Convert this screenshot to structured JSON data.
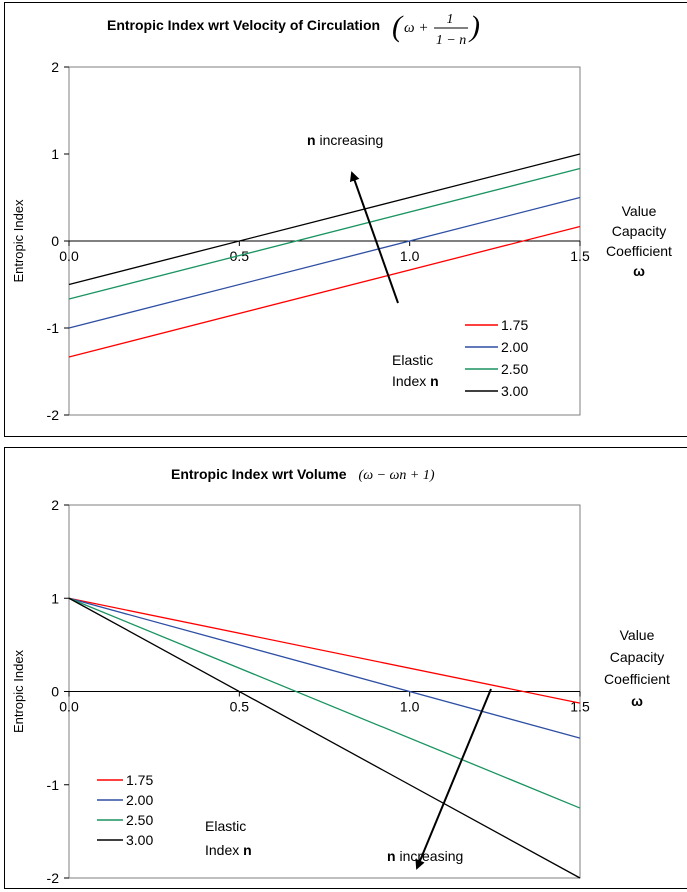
{
  "chart_data": [
    {
      "type": "line",
      "title": "Entropic Index wrt Velocity of Circulation",
      "formula": {
        "prefix": "ω +",
        "numerator": "1",
        "denominator": "1 − n"
      },
      "ylabel": "Entropic Index",
      "xlabel_lines": [
        "Value",
        "Capacity",
        "Coefficient",
        "ω"
      ],
      "xlim": [
        0,
        1.5
      ],
      "ylim": [
        -2,
        2
      ],
      "xticks": [
        "0.0",
        "0.5",
        "1.0",
        "1.5"
      ],
      "yticks": [
        "-2",
        "-1",
        "0",
        "1",
        "2"
      ],
      "legend_title_lines": [
        "Elastic",
        "Index n"
      ],
      "legend_position": "bottom-right",
      "annotation": "n increasing",
      "series": [
        {
          "name": "1.75",
          "color": "#ff0000",
          "x": [
            0,
            1.5
          ],
          "y": [
            -1.333,
            0.167
          ]
        },
        {
          "name": "2.00",
          "color": "#2e4fa3",
          "x": [
            0,
            1.5
          ],
          "y": [
            -1.0,
            0.5
          ]
        },
        {
          "name": "2.50",
          "color": "#1a9461",
          "x": [
            0,
            1.5
          ],
          "y": [
            -0.667,
            0.833
          ]
        },
        {
          "name": "3.00",
          "color": "#000000",
          "x": [
            0,
            1.5
          ],
          "y": [
            -0.5,
            1.0
          ]
        }
      ]
    },
    {
      "type": "line",
      "title": "Entropic Index wrt Volume",
      "formula": {
        "text": "(ω − ωn + 1)"
      },
      "ylabel": "Entropic Index",
      "xlabel_lines": [
        "Value",
        "Capacity",
        "Coefficient",
        "ω"
      ],
      "xlim": [
        0,
        1.5
      ],
      "ylim": [
        -2,
        2
      ],
      "xticks": [
        "0.0",
        "0.5",
        "1.0",
        "1.5"
      ],
      "yticks": [
        "-2",
        "-1",
        "0",
        "1",
        "2"
      ],
      "legend_title_lines": [
        "Elastic",
        "Index n"
      ],
      "legend_position": "bottom-left",
      "annotation": "n increasing",
      "series": [
        {
          "name": "1.75",
          "color": "#ff0000",
          "x": [
            0,
            1.5
          ],
          "y": [
            1.0,
            -0.125
          ]
        },
        {
          "name": "2.00",
          "color": "#2e4fa3",
          "x": [
            0,
            1.5
          ],
          "y": [
            1.0,
            -0.5
          ]
        },
        {
          "name": "2.50",
          "color": "#1a9461",
          "x": [
            0,
            1.5
          ],
          "y": [
            1.0,
            -1.25
          ]
        },
        {
          "name": "3.00",
          "color": "#000000",
          "x": [
            0,
            1.5
          ],
          "y": [
            1.0,
            -2.0
          ]
        }
      ]
    }
  ]
}
